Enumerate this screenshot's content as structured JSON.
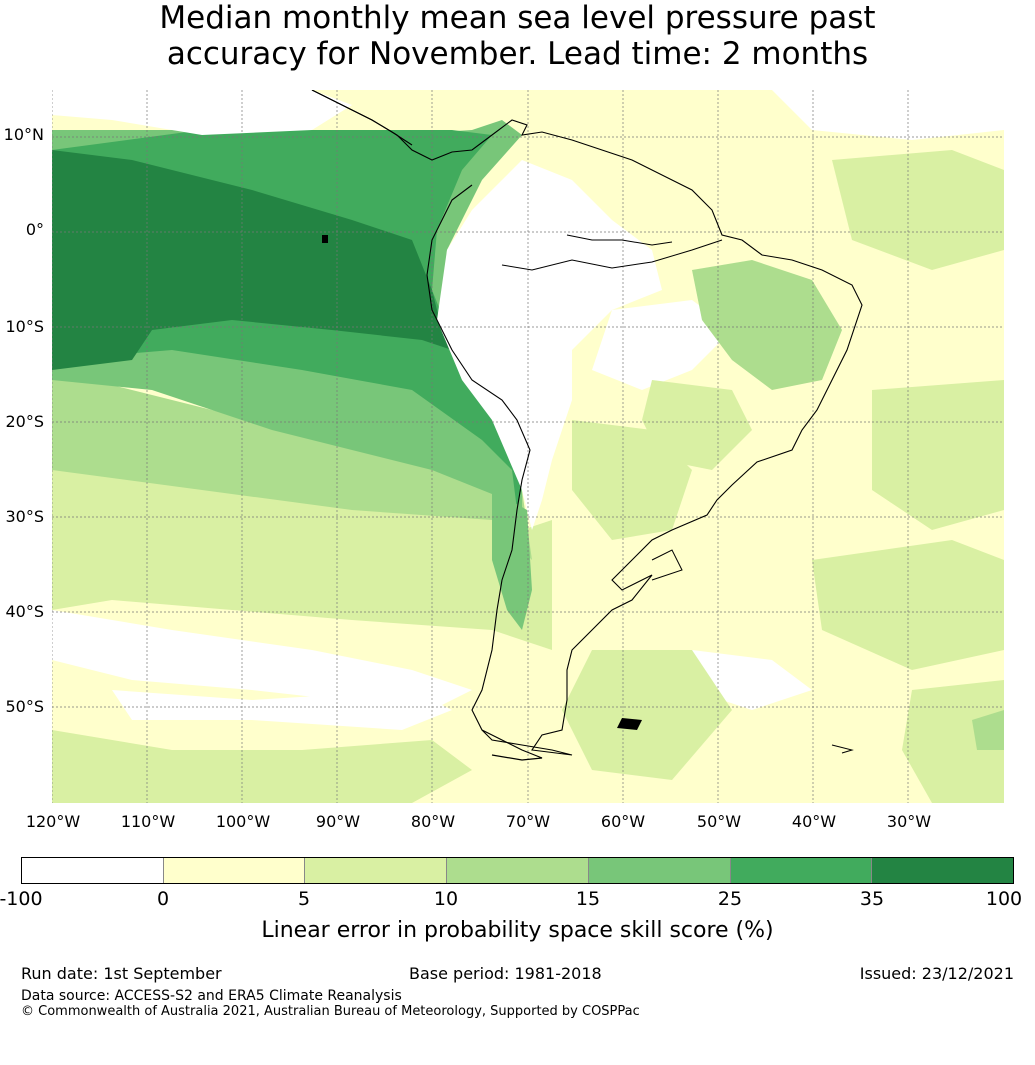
{
  "title_line1": "Median monthly mean sea level pressure past",
  "title_line2": "accuracy for November. Lead time: 2 months",
  "map": {
    "lat_ticks": [
      "10°N",
      "0°",
      "10°S",
      "20°S",
      "30°S",
      "40°S",
      "50°S"
    ],
    "lon_ticks": [
      "120°W",
      "110°W",
      "100°W",
      "90°W",
      "80°W",
      "70°W",
      "60°W",
      "50°W",
      "40°W",
      "30°W"
    ],
    "region": "South America and adjacent Pacific / Atlantic",
    "gridlines": true
  },
  "colorbar": {
    "ticks": [
      "-100",
      "0",
      "5",
      "10",
      "15",
      "25",
      "35",
      "100"
    ],
    "colors": [
      "#ffffff",
      "#ffffcc",
      "#d9f0a3",
      "#addd8e",
      "#78c679",
      "#41ab5d",
      "#238443"
    ],
    "label": "Linear error in probability space skill score (%)"
  },
  "footer": {
    "run_date": "Run date: 1st September",
    "base_period": "Base period: 1981-2018",
    "issued": "Issued: 23/12/2021",
    "data_source": "Data source: ACCESS-S2 and ERA5 Climate Reanalysis",
    "copyright": "© Commonwealth of Australia 2021, Australian Bureau of Meteorology, Supported by COSPPac"
  }
}
